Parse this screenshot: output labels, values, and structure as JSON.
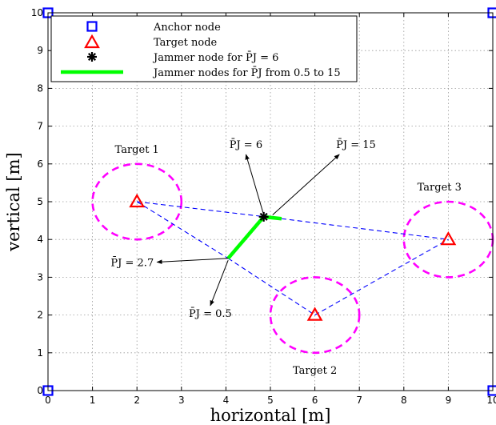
{
  "chart_data": {
    "type": "scatter",
    "title": "",
    "xlabel": "horizontal [m]",
    "ylabel": "vertical [m]",
    "xlim": [
      0,
      10
    ],
    "ylim": [
      0,
      10
    ],
    "xticks": [
      "0",
      "1",
      "2",
      "3",
      "4",
      "5",
      "6",
      "7",
      "8",
      "9",
      "10"
    ],
    "yticks": [
      "0",
      "1",
      "2",
      "3",
      "4",
      "5",
      "6",
      "7",
      "8",
      "9",
      "10"
    ],
    "grid": true,
    "legend_position": "top-left",
    "colors": {
      "anchor": "#0000ff",
      "target": "#ff0000",
      "jammer": "#000000",
      "jammer_path": "#00ff00",
      "circle": "#ff00ff",
      "dashed_link": "#0000ff"
    },
    "legend": [
      {
        "key": "anchor",
        "label": "Anchor node"
      },
      {
        "key": "target",
        "label": "Target node"
      },
      {
        "key": "jammer",
        "label": "Jammer node for P̄J = 6"
      },
      {
        "key": "jammer_path",
        "label": "Jammer nodes for P̄J from 0.5 to 15"
      }
    ],
    "anchors": [
      {
        "x": 0,
        "y": 0
      },
      {
        "x": 10,
        "y": 0
      },
      {
        "x": 0,
        "y": 10
      },
      {
        "x": 10,
        "y": 10
      }
    ],
    "targets": [
      {
        "name": "Target 1",
        "x": 2,
        "y": 5,
        "radius": 1
      },
      {
        "name": "Target 2",
        "x": 6,
        "y": 2,
        "radius": 1
      },
      {
        "name": "Target 3",
        "x": 9,
        "y": 4,
        "radius": 1
      }
    ],
    "jammer": {
      "x": 4.85,
      "y": 4.6
    },
    "jammer_path": [
      {
        "x": 4.05,
        "y": 3.5
      },
      {
        "x": 4.85,
        "y": 4.6
      },
      {
        "x": 5.25,
        "y": 4.55
      }
    ],
    "annotations": [
      {
        "label": "P̄J = 0.5",
        "point": {
          "x": 4.05,
          "y": 3.45
        },
        "text_at": {
          "x": 3.65,
          "y": 2.25
        }
      },
      {
        "label": "P̄J = 2.7",
        "point": {
          "x": 4.05,
          "y": 3.5
        },
        "text_at": {
          "x": 2.45,
          "y": 3.4
        }
      },
      {
        "label": "P̄J = 6",
        "point": {
          "x": 4.85,
          "y": 4.65
        },
        "text_at": {
          "x": 4.45,
          "y": 6.25
        }
      },
      {
        "label": "P̄J = 15",
        "point": {
          "x": 5.05,
          "y": 4.65
        },
        "text_at": {
          "x": 6.55,
          "y": 6.25
        }
      }
    ]
  }
}
